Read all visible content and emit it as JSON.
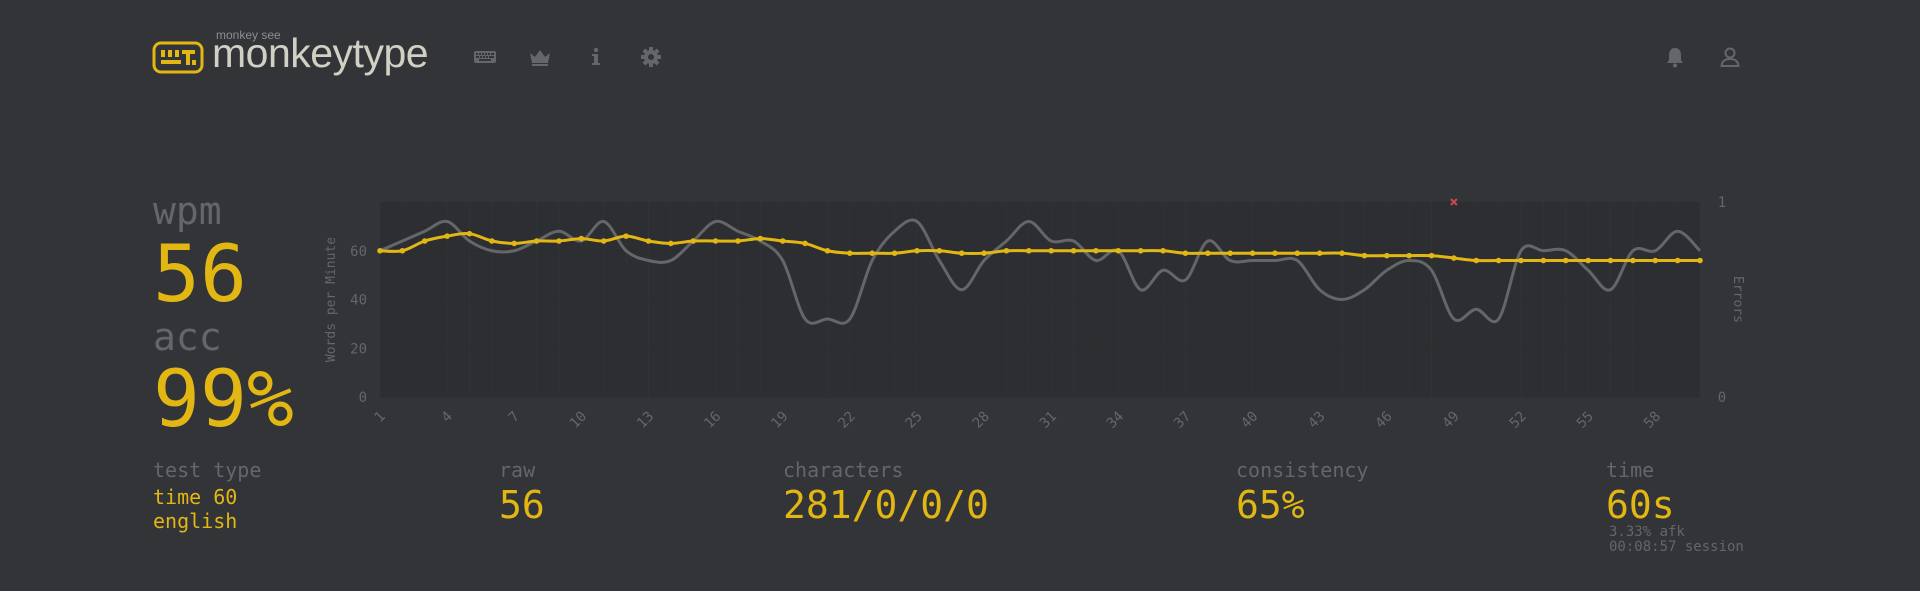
{
  "header": {
    "logo_top": "monkey see",
    "logo_text": "monkeytype",
    "icons": [
      "keyboard-icon",
      "crown-icon",
      "info-icon",
      "gear-icon"
    ],
    "right_icons": [
      "bell-icon",
      "user-icon"
    ],
    "accent": "#e2b714"
  },
  "stats": {
    "wpm_label": "wpm",
    "wpm_value": "56",
    "acc_label": "acc",
    "acc_value": "99%",
    "test_type_label": "test type",
    "test_type_line1": "time 60",
    "test_type_line2": "english",
    "raw_label": "raw",
    "raw_value": "56",
    "characters_label": "characters",
    "characters_value": "281/0/0/0",
    "consistency_label": "consistency",
    "consistency_value": "65%",
    "time_label": "time",
    "time_value": "60s",
    "afk": "3.33% afk",
    "session": "00:08:57 session"
  },
  "chart_data": {
    "type": "line",
    "ylabel": "Words per Minute",
    "y2label": "Errors",
    "ylim": [
      0,
      80
    ],
    "y2lim": [
      0,
      1
    ],
    "y_ticks": [
      "0",
      "20",
      "40",
      "60"
    ],
    "y2_ticks": [
      "0",
      "1"
    ],
    "x_tick_labels": [
      "1",
      "4",
      "7",
      "10",
      "13",
      "16",
      "19",
      "22",
      "25",
      "28",
      "31",
      "34",
      "37",
      "40",
      "43",
      "46",
      "49",
      "52",
      "55",
      "58"
    ],
    "x": [
      1,
      2,
      3,
      4,
      5,
      6,
      7,
      8,
      9,
      10,
      11,
      12,
      13,
      14,
      15,
      16,
      17,
      18,
      19,
      20,
      21,
      22,
      23,
      24,
      25,
      26,
      27,
      28,
      29,
      30,
      31,
      32,
      33,
      34,
      35,
      36,
      37,
      38,
      39,
      40,
      41,
      42,
      43,
      44,
      45,
      46,
      47,
      48,
      49,
      50,
      51,
      52,
      53,
      54,
      55,
      56,
      57,
      58,
      59,
      60
    ],
    "series": [
      {
        "name": "",
        "color": "#e2b714",
        "values": [
          60,
          60,
          64,
          66,
          67,
          64,
          63,
          64,
          64,
          65,
          64,
          66,
          64,
          63,
          64,
          64,
          64,
          65,
          64,
          63,
          60,
          59,
          59,
          59,
          60,
          60,
          59,
          59,
          60,
          60,
          60,
          60,
          60,
          60,
          60,
          60,
          59,
          59,
          59,
          59,
          59,
          59,
          59,
          59,
          58,
          58,
          58,
          58,
          57,
          56,
          56,
          56,
          56,
          56,
          56,
          56,
          56,
          56,
          56,
          56
        ]
      },
      {
        "name": "",
        "color": "#646669",
        "values": [
          60,
          64,
          68,
          72,
          64,
          60,
          60,
          64,
          68,
          64,
          72,
          60,
          56,
          56,
          64,
          72,
          68,
          64,
          56,
          32,
          32,
          32,
          56,
          68,
          72,
          56,
          44,
          56,
          64,
          72,
          64,
          64,
          56,
          60,
          44,
          52,
          48,
          64,
          56,
          56,
          56,
          56,
          44,
          40,
          44,
          52,
          56,
          52,
          32,
          36,
          32,
          60,
          60,
          60,
          52,
          44,
          60,
          60,
          68,
          60
        ]
      }
    ],
    "errors": [
      {
        "x": 49,
        "y": 1
      }
    ]
  }
}
